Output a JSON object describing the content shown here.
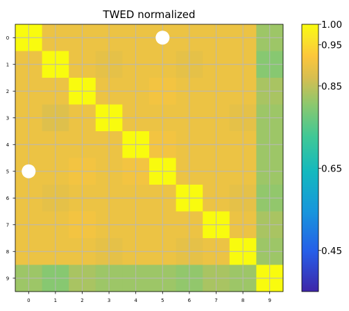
{
  "chart_data": {
    "type": "heatmap",
    "title": "TWED normalized",
    "x_tick_labels": [
      "0",
      "1",
      "2",
      "3",
      "4",
      "5",
      "6",
      "7",
      "8",
      "9"
    ],
    "y_tick_labels": [
      "0",
      "1",
      "2",
      "3",
      "4",
      "5",
      "6",
      "7",
      "8",
      "9"
    ],
    "values": [
      [
        1.0,
        0.9,
        0.9,
        0.9,
        0.9,
        0.9,
        0.9,
        0.9,
        0.9,
        0.82
      ],
      [
        0.9,
        1.0,
        0.9,
        0.89,
        0.9,
        0.9,
        0.89,
        0.9,
        0.9,
        0.8
      ],
      [
        0.9,
        0.9,
        1.0,
        0.9,
        0.9,
        0.91,
        0.9,
        0.9,
        0.9,
        0.83
      ],
      [
        0.9,
        0.88,
        0.9,
        1.0,
        0.9,
        0.9,
        0.9,
        0.9,
        0.89,
        0.82
      ],
      [
        0.9,
        0.9,
        0.9,
        0.9,
        1.0,
        0.91,
        0.9,
        0.9,
        0.9,
        0.82
      ],
      [
        0.9,
        0.9,
        0.91,
        0.9,
        0.91,
        1.0,
        0.9,
        0.9,
        0.9,
        0.82
      ],
      [
        0.9,
        0.89,
        0.9,
        0.9,
        0.9,
        0.9,
        1.0,
        0.9,
        0.89,
        0.81
      ],
      [
        0.9,
        0.9,
        0.91,
        0.9,
        0.9,
        0.9,
        0.9,
        1.0,
        0.9,
        0.83
      ],
      [
        0.9,
        0.9,
        0.9,
        0.89,
        0.9,
        0.9,
        0.89,
        0.9,
        1.0,
        0.82
      ],
      [
        0.82,
        0.8,
        0.83,
        0.82,
        0.82,
        0.82,
        0.81,
        0.83,
        0.82,
        1.0
      ]
    ],
    "markers": [
      {
        "row": 0,
        "col": 5
      },
      {
        "row": 5,
        "col": 0
      }
    ],
    "colorbar": {
      "vmin": 0.35,
      "vmax": 1.0,
      "tick_values": [
        0.45,
        0.65,
        0.85,
        0.95,
        1.0
      ],
      "tick_labels": [
        "0.45",
        "0.65",
        "0.85",
        "0.95",
        "1.00"
      ]
    },
    "grid": true,
    "colormap": "parula"
  }
}
